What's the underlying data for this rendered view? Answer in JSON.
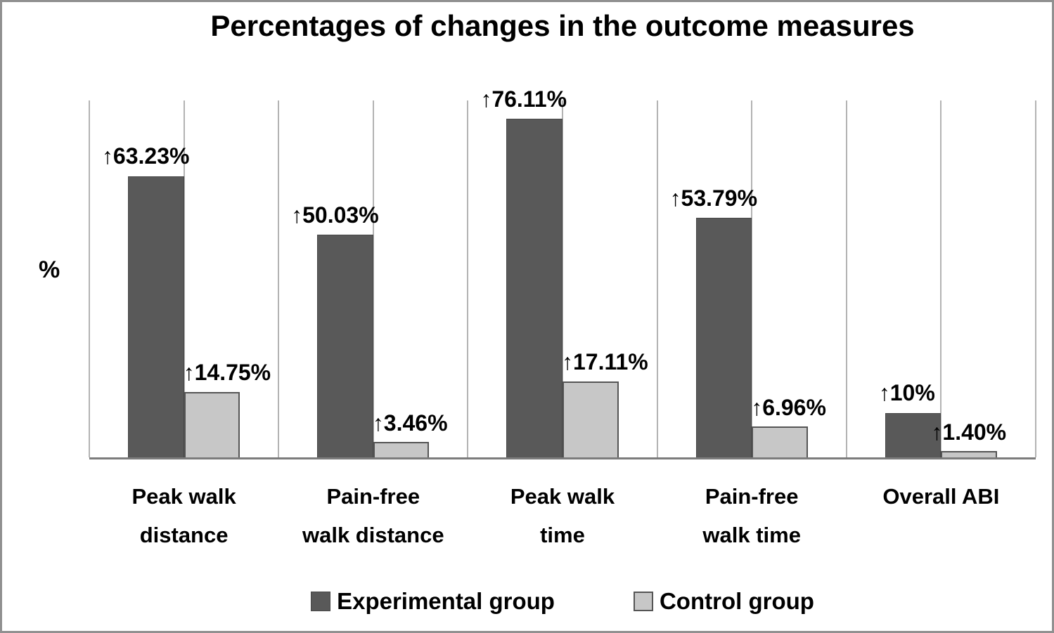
{
  "chart_data": {
    "type": "bar",
    "title": "Percentages of changes in the outcome measures",
    "ylabel": "%",
    "xlabel": "",
    "ylim": [
      0,
      80.2
    ],
    "grid": "vertical-only",
    "legend_position": "bottom",
    "background": "#ffffff",
    "gridline_color": "#b3b3b3",
    "axis_color": "#7c7c7c",
    "categories": [
      "Peak walk distance",
      "Pain-free walk distance",
      "Peak walk time",
      "Pain-free walk time",
      "Overall ABI"
    ],
    "category_lines": [
      [
        "Peak walk",
        "distance"
      ],
      [
        "Pain-free",
        "walk distance"
      ],
      [
        "Peak walk",
        "time"
      ],
      [
        "Pain-free",
        "walk time"
      ],
      [
        "Overall ABI"
      ]
    ],
    "series": [
      {
        "name": "Experimental group",
        "color": "#595959",
        "values": [
          63.23,
          50.03,
          76.11,
          53.79,
          10
        ],
        "labels": [
          "↑63.23%",
          "↑50.03%",
          "↑76.11%",
          "↑53.79%",
          "↑10%"
        ]
      },
      {
        "name": "Control group",
        "color": "#c7c7c7",
        "border_color": "#555555",
        "values": [
          14.75,
          3.46,
          17.11,
          6.96,
          1.4
        ],
        "labels": [
          "↑14.75%",
          "↑3.46%",
          "↑17.11%",
          "↑6.96%",
          "↑1.40%"
        ]
      }
    ],
    "value_arrow_icon": "up-arrow-icon"
  }
}
